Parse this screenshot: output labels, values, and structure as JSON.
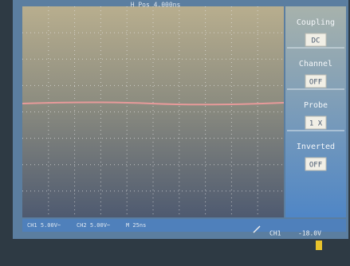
{
  "header": {
    "hpos": "H Pos 4.000ns"
  },
  "menu": [
    {
      "label": "Coupling",
      "value": "DC"
    },
    {
      "label": "Channel",
      "value": "OFF"
    },
    {
      "label": "Probe",
      "value": "1 X"
    },
    {
      "label": "Inverted",
      "value": "OFF"
    }
  ],
  "status": {
    "ch1": "CH1 5.00V~",
    "ch2": "CH2 5.00V~",
    "time": "M 25ns",
    "trigger_source": "CH1",
    "trigger_level": "-18.0V"
  }
}
